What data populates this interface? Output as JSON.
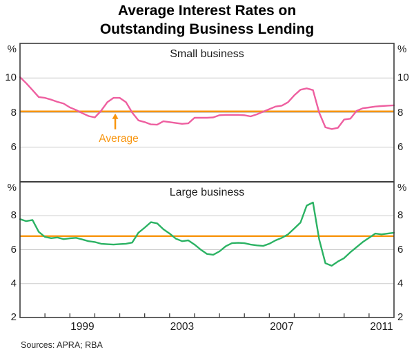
{
  "title": {
    "line1": "Average Interest Rates on",
    "line2": "Outstanding Business Lending"
  },
  "sources": "Sources: APRA; RBA",
  "annotation_label": "Average",
  "colors": {
    "small_business_line": "#ee5fa0",
    "large_business_line": "#2bb263",
    "average_line": "#f8950e",
    "grid": "#cccccc",
    "border": "#3c3c3c",
    "text": "#1c1c1c"
  },
  "chart_data": {
    "type": "line",
    "x": {
      "start": 1997,
      "end": 2012,
      "step": 0.25,
      "tick_years": [
        1998,
        1999,
        2000,
        2001,
        2002,
        2003,
        2004,
        2005,
        2006,
        2007,
        2008,
        2009,
        2010,
        2011
      ],
      "labels": [
        {
          "text": "1999",
          "x": 1999.5
        },
        {
          "text": "2003",
          "x": 2003.5
        },
        {
          "text": "2007",
          "x": 2007.5
        },
        {
          "text": "2011",
          "x": 2011.5
        }
      ]
    },
    "annotation": {
      "text": "Average",
      "x": 2000.82,
      "panel": 0
    },
    "panels": [
      {
        "name": "small-business",
        "title": "Small business",
        "unit": "%",
        "ylim": [
          4,
          12
        ],
        "yticks": [
          6,
          8,
          10
        ],
        "average": 8.07,
        "series": {
          "name": "Small business average interest rate",
          "color_key": "small_business_line",
          "values": [
            10.05,
            9.7,
            9.3,
            8.9,
            8.85,
            8.75,
            8.62,
            8.52,
            8.3,
            8.15,
            7.97,
            7.8,
            7.72,
            8.1,
            8.6,
            8.85,
            8.85,
            8.6,
            8.0,
            7.55,
            7.45,
            7.32,
            7.3,
            7.5,
            7.45,
            7.4,
            7.35,
            7.38,
            7.7,
            7.7,
            7.7,
            7.72,
            7.85,
            7.87,
            7.87,
            7.87,
            7.85,
            7.78,
            7.9,
            8.05,
            8.2,
            8.35,
            8.4,
            8.6,
            9.0,
            9.32,
            9.4,
            9.3,
            8.0,
            7.15,
            7.05,
            7.12,
            7.6,
            7.65,
            8.1,
            8.25,
            8.3,
            8.35,
            8.38,
            8.4,
            8.42
          ]
        }
      },
      {
        "name": "large-business",
        "title": "Large business",
        "unit": "%",
        "ylim": [
          2,
          10
        ],
        "yticks": [
          2,
          4,
          6,
          8
        ],
        "average": 6.8,
        "series": {
          "name": "Large business average interest rate",
          "color_key": "large_business_line",
          "values": [
            7.8,
            7.68,
            7.75,
            7.05,
            6.75,
            6.68,
            6.72,
            6.62,
            6.67,
            6.7,
            6.6,
            6.5,
            6.45,
            6.35,
            6.32,
            6.3,
            6.33,
            6.35,
            6.42,
            7.0,
            7.3,
            7.62,
            7.55,
            7.2,
            6.95,
            6.65,
            6.5,
            6.55,
            6.3,
            6.0,
            5.75,
            5.7,
            5.9,
            6.2,
            6.38,
            6.4,
            6.38,
            6.3,
            6.25,
            6.22,
            6.35,
            6.55,
            6.7,
            6.9,
            7.25,
            7.6,
            8.6,
            8.78,
            6.6,
            5.2,
            5.05,
            5.3,
            5.5,
            5.85,
            6.15,
            6.45,
            6.7,
            6.95,
            6.9,
            6.95,
            7.0
          ]
        }
      }
    ]
  }
}
